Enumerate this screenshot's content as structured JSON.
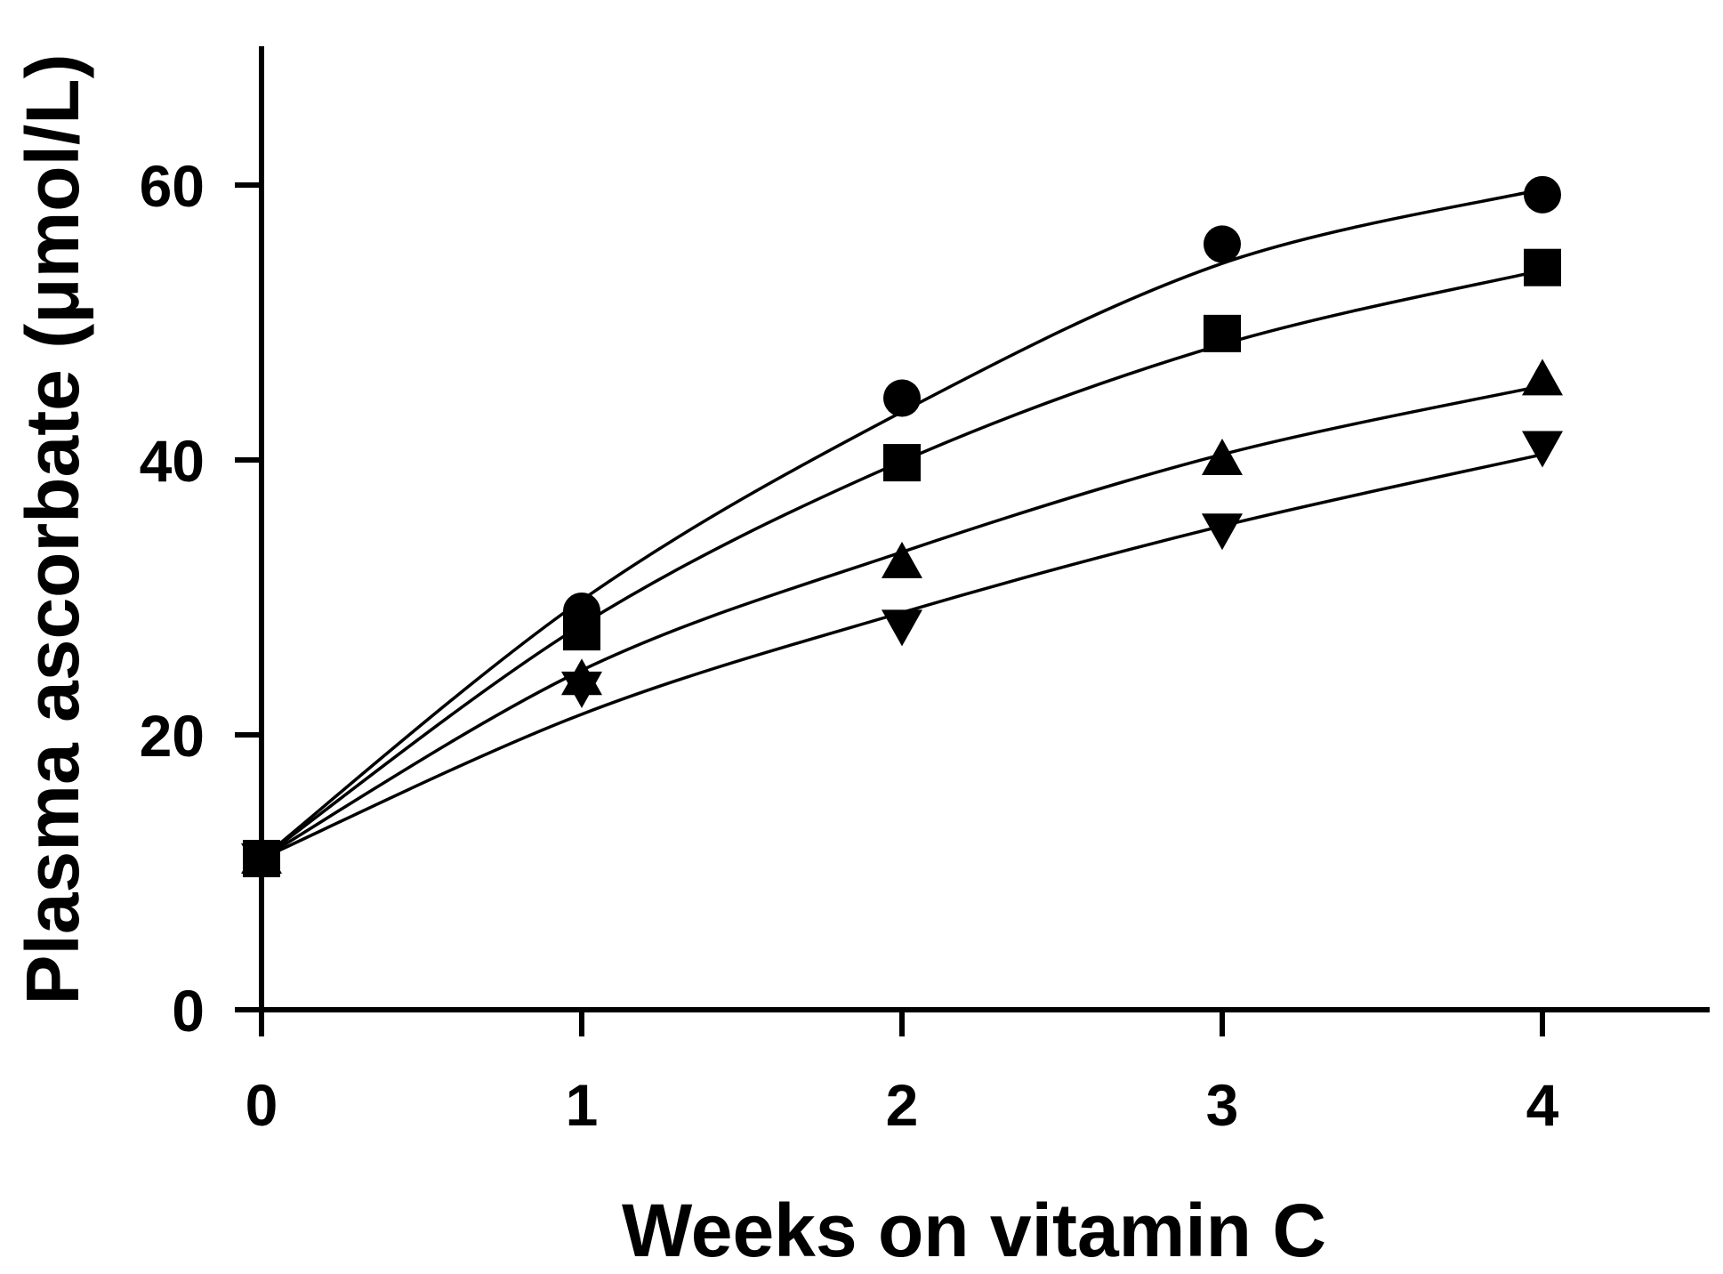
{
  "chart_data": {
    "type": "scatter",
    "title": "",
    "xlabel": "Weeks on vitamin C",
    "ylabel": "Plasma ascorbate (μmol/L)",
    "xlim": [
      0,
      4.5
    ],
    "ylim": [
      0,
      70
    ],
    "xticks": [
      0,
      1,
      2,
      3,
      4
    ],
    "yticks": [
      0,
      20,
      40,
      60
    ],
    "xtick_labels": [
      "0",
      "1",
      "2",
      "3",
      "4"
    ],
    "ytick_labels": [
      "0",
      "20",
      "40",
      "60"
    ],
    "grid": false,
    "legend": "none",
    "series": [
      {
        "name": "circle",
        "marker": "circle",
        "x": [
          0,
          1,
          2,
          3,
          4
        ],
        "y": [
          11,
          29,
          44.5,
          55.7,
          59.3
        ],
        "fit": [
          11,
          29.8,
          43.5,
          54.3,
          59.7
        ]
      },
      {
        "name": "square",
        "marker": "square",
        "x": [
          0,
          1,
          2,
          3,
          4
        ],
        "y": [
          11,
          27.5,
          39.8,
          49.2,
          54
        ],
        "fit": [
          11,
          28,
          39.9,
          48.4,
          53.8
        ]
      },
      {
        "name": "triangle-up",
        "marker": "triangle-up",
        "x": [
          0,
          1,
          2,
          3,
          4
        ],
        "y": [
          11,
          24,
          32.5,
          40,
          45.8
        ],
        "fit": [
          11,
          24.7,
          33.3,
          40.4,
          45.4
        ]
      },
      {
        "name": "triangle-down",
        "marker": "triangle-down",
        "x": [
          0,
          1,
          2,
          3,
          4
        ],
        "y": [
          11,
          23.5,
          28,
          35,
          41
        ],
        "fit": [
          11,
          21.5,
          28.9,
          35.2,
          40.4
        ]
      }
    ]
  }
}
